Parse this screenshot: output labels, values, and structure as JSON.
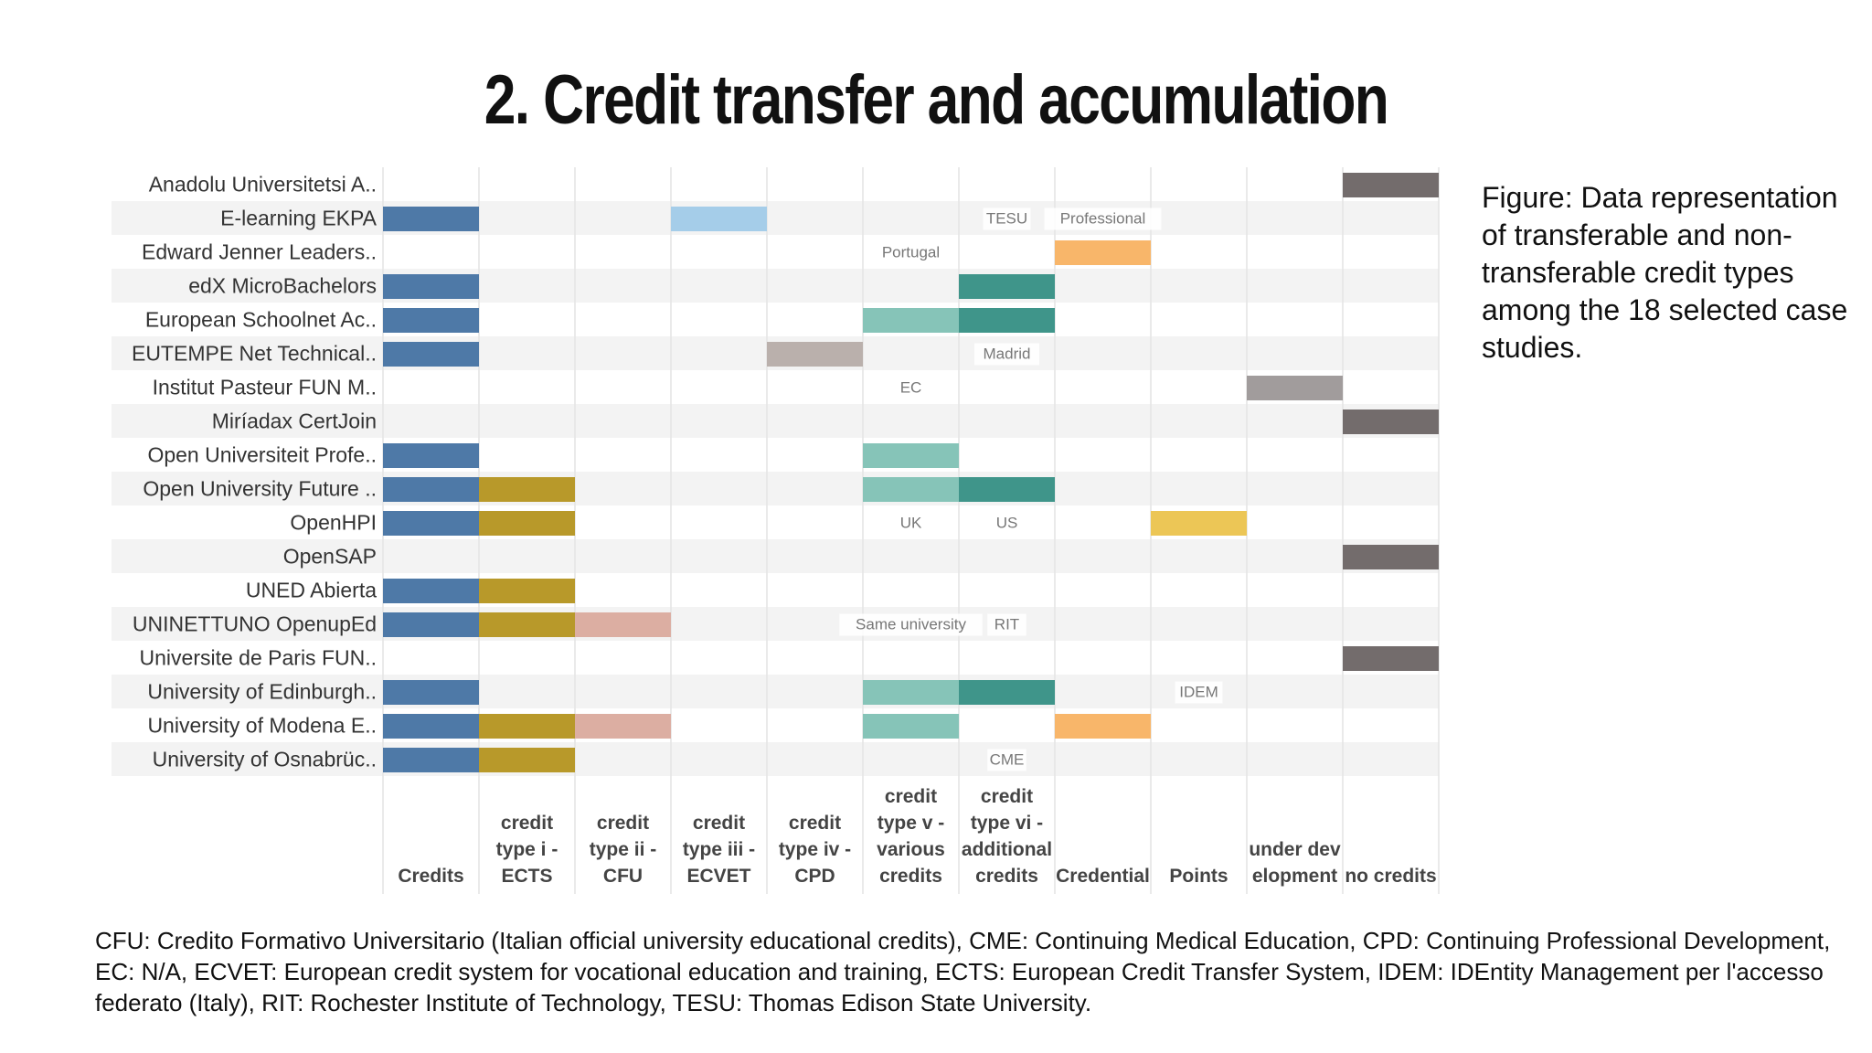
{
  "slide_title": "2. Credit transfer and accumulation",
  "caption": "Figure: Data representation of transferable and non-transferable credit types among the 18 selected case studies.",
  "footnote": "CFU: Credito Formativo Universitario (Italian official university educational credits), CME: Continuing Medical Education, CPD: Continuing Professional Development, EC: N/A, ECVET: European credit system for vocational education and training, ECTS: European Credit Transfer System, IDEM: IDEntity Management per l'accesso federato (Italy), RIT: Rochester Institute of Technology, TESU: Thomas Edison State University.",
  "chart_data": {
    "type": "heatmap",
    "rows": [
      "Anadolu Universitetsi A..",
      "E-learning EKPA",
      "Edward Jenner Leaders..",
      "edX MicroBachelors",
      "European Schoolnet Ac..",
      "EUTEMPE Net Technical..",
      "Institut Pasteur FUN M..",
      "Miríadax CertJoin",
      "Open Universiteit Profe..",
      "Open University Future ..",
      "OpenHPI",
      "OpenSAP",
      "UNED Abierta",
      "UNINETTUNO OpenupEd",
      "Universite de Paris FUN..",
      "University of Edinburgh..",
      "University of Modena E..",
      "University of Osnabrüc.."
    ],
    "columns": [
      {
        "lines": [
          "Credits"
        ],
        "color": "#4e79a7"
      },
      {
        "lines": [
          "credit",
          "type i -",
          "ECTS"
        ],
        "color": "#b8992a"
      },
      {
        "lines": [
          "credit",
          "type ii -",
          "CFU"
        ],
        "color": "#dcaea2"
      },
      {
        "lines": [
          "credit",
          "type iii -",
          "ECVET"
        ],
        "color": "#a5cde9"
      },
      {
        "lines": [
          "credit",
          "type iv -",
          "CPD"
        ],
        "color": "#bab0ac"
      },
      {
        "lines": [
          "credit",
          "type v -",
          "various",
          "credits"
        ],
        "color": "#86c4b8"
      },
      {
        "lines": [
          "credit",
          "type vi -",
          "additional",
          "credits"
        ],
        "color": "#3f958a"
      },
      {
        "lines": [
          "Credential"
        ],
        "color": "#f8b66a"
      },
      {
        "lines": [
          "Points"
        ],
        "color": "#ecc656"
      },
      {
        "lines": [
          "under dev",
          "elopment"
        ],
        "color": "#a19c9c"
      },
      {
        "lines": [
          "no credits"
        ],
        "color": "#736c6c"
      }
    ],
    "cells": [
      [
        0,
        0,
        0,
        0,
        0,
        0,
        0,
        0,
        0,
        0,
        1
      ],
      [
        1,
        0,
        0,
        1,
        0,
        0,
        0,
        0,
        0,
        0,
        0
      ],
      [
        0,
        0,
        0,
        0,
        0,
        0,
        0,
        1,
        0,
        0,
        0
      ],
      [
        1,
        0,
        0,
        0,
        0,
        0,
        1,
        0,
        0,
        0,
        0
      ],
      [
        1,
        0,
        0,
        0,
        0,
        1,
        1,
        0,
        0,
        0,
        0
      ],
      [
        1,
        0,
        0,
        0,
        1,
        0,
        0,
        0,
        0,
        0,
        0
      ],
      [
        0,
        0,
        0,
        0,
        0,
        0,
        0,
        0,
        0,
        1,
        0
      ],
      [
        0,
        0,
        0,
        0,
        0,
        0,
        0,
        0,
        0,
        0,
        1
      ],
      [
        1,
        0,
        0,
        0,
        0,
        1,
        0,
        0,
        0,
        0,
        0
      ],
      [
        1,
        1,
        0,
        0,
        0,
        1,
        1,
        0,
        0,
        0,
        0
      ],
      [
        1,
        1,
        0,
        0,
        0,
        0,
        0,
        0,
        1,
        0,
        0
      ],
      [
        0,
        0,
        0,
        0,
        0,
        0,
        0,
        0,
        0,
        0,
        1
      ],
      [
        1,
        1,
        0,
        0,
        0,
        0,
        0,
        0,
        0,
        0,
        0
      ],
      [
        1,
        1,
        1,
        0,
        0,
        0,
        0,
        0,
        0,
        0,
        0
      ],
      [
        0,
        0,
        0,
        0,
        0,
        0,
        0,
        0,
        0,
        0,
        1
      ],
      [
        1,
        0,
        0,
        0,
        0,
        1,
        1,
        0,
        0,
        0,
        0
      ],
      [
        1,
        1,
        1,
        0,
        0,
        1,
        0,
        1,
        0,
        0,
        0
      ],
      [
        1,
        1,
        0,
        0,
        0,
        0,
        0,
        0,
        0,
        0,
        0
      ]
    ],
    "annotations": [
      {
        "text": "TESU",
        "row": 1,
        "col": 6
      },
      {
        "text": "Professional",
        "row": 1,
        "col": 7
      },
      {
        "text": "Portugal",
        "row": 2,
        "col": 5
      },
      {
        "text": "Madrid",
        "row": 5,
        "col": 6
      },
      {
        "text": "EC",
        "row": 6,
        "col": 5
      },
      {
        "text": "UK",
        "row": 10,
        "col": 5
      },
      {
        "text": "US",
        "row": 10,
        "col": 6
      },
      {
        "text": "Same university",
        "row": 13,
        "col": 5
      },
      {
        "text": "RIT",
        "row": 13,
        "col": 6
      },
      {
        "text": "IDEM",
        "row": 15,
        "col": 8
      },
      {
        "text": "CME",
        "row": 17,
        "col": 6
      }
    ]
  }
}
